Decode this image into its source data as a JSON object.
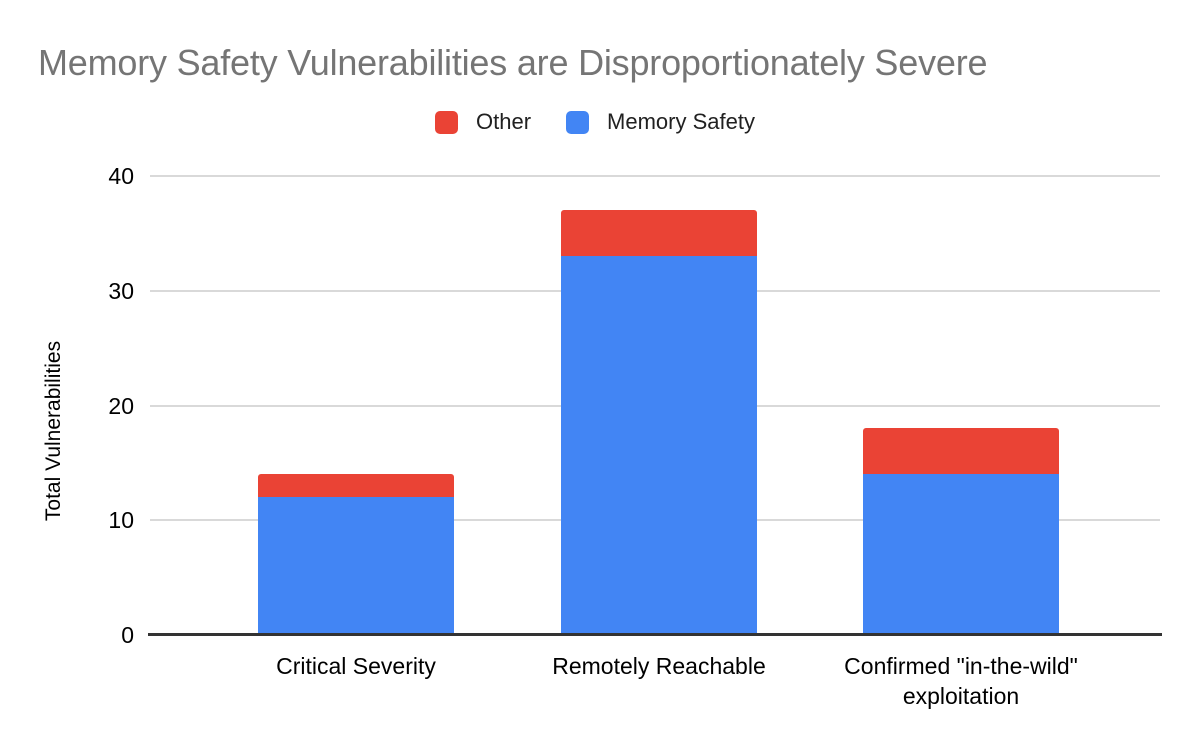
{
  "title": "Memory Safety Vulnerabilities are Disproportionately Severe",
  "legend": [
    {
      "label": "Other",
      "color": "#EA4335"
    },
    {
      "label": "Memory Safety",
      "color": "#4285F4"
    }
  ],
  "chart_data": {
    "type": "bar",
    "stacked": true,
    "title": "Memory Safety Vulnerabilities are Disproportionately Severe",
    "categories": [
      "Critical Severity",
      "Remotely Reachable",
      "Confirmed \"in-the-wild\" exploitation"
    ],
    "series": [
      {
        "name": "Memory Safety",
        "color": "#4285F4",
        "values": [
          12,
          33,
          14
        ]
      },
      {
        "name": "Other",
        "color": "#EA4335",
        "values": [
          2,
          4,
          4
        ]
      }
    ],
    "totals": [
      14,
      37,
      18
    ],
    "xlabel": "",
    "ylabel": "Total Vulnerabilities",
    "ylim": [
      0,
      40
    ],
    "yticks": [
      0,
      10,
      20,
      30,
      40
    ],
    "grid": true,
    "legend_position": "top"
  },
  "colors": {
    "memory_safety_blue": "#4285F4",
    "other_red": "#EA4335",
    "title_gray": "#757575",
    "gridline_gray": "#d9d9d9",
    "axis_dark": "#333333",
    "label_black": "#000000",
    "background": "#ffffff"
  }
}
